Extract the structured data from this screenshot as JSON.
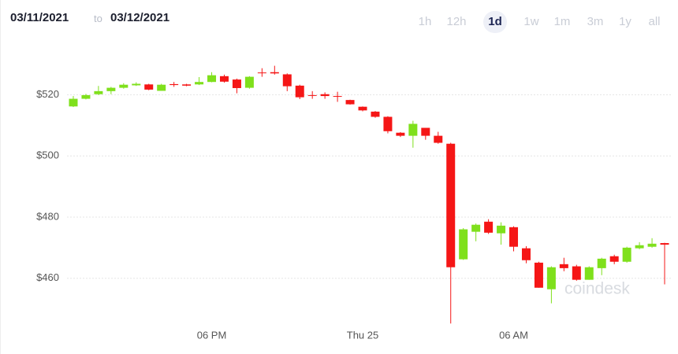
{
  "header": {
    "from": "03/11/2021",
    "to_label": "to",
    "to": "03/12/2021",
    "ranges": [
      {
        "label": "1h",
        "active": false
      },
      {
        "label": "12h",
        "active": false
      },
      {
        "label": "1d",
        "active": true
      },
      {
        "label": "1w",
        "active": false
      },
      {
        "label": "1m",
        "active": false
      },
      {
        "label": "3m",
        "active": false
      },
      {
        "label": "1y",
        "active": false
      },
      {
        "label": "all",
        "active": false
      }
    ]
  },
  "chart_data": {
    "type": "candlestick",
    "watermark": "coindesk",
    "categories": [
      null,
      null,
      null,
      null,
      null,
      null,
      null,
      null,
      null,
      null,
      null,
      "06 PM",
      null,
      null,
      null,
      null,
      null,
      null,
      null,
      null,
      null,
      null,
      null,
      "Thu 25",
      null,
      null,
      null,
      null,
      null,
      null,
      null,
      null,
      null,
      null,
      null,
      "06 AM",
      null,
      null,
      null,
      null,
      null,
      null,
      null,
      null,
      null,
      null,
      null,
      null
    ],
    "open": [
      516.2,
      518.7,
      520.2,
      521.2,
      522.3,
      523.1,
      523.4,
      521.3,
      523.5,
      523.4,
      523.4,
      524.2,
      526.1,
      525.0,
      522.3,
      527.3,
      527.4,
      526.7,
      523.0,
      519.9,
      520.2,
      519.6,
      518.3,
      516.1,
      514.5,
      512.8,
      507.6,
      506.6,
      509.2,
      506.6,
      504.0,
      466.2,
      475.2,
      478.5,
      474.7,
      476.7,
      469.8,
      465.1,
      456.4,
      464.6,
      463.9,
      459.5,
      463.3,
      467.2,
      465.4,
      469.8,
      470.3,
      471.5
    ],
    "high": [
      519.6,
      520.3,
      522.9,
      522.6,
      523.8,
      524.1,
      523.6,
      523.6,
      524.2,
      523.6,
      525.8,
      527.4,
      526.6,
      525.3,
      526.1,
      528.7,
      529.5,
      527.0,
      523.3,
      521.2,
      520.8,
      521.0,
      518.4,
      516.2,
      514.7,
      513.0,
      507.8,
      511.5,
      509.2,
      507.9,
      504.3,
      476.4,
      477.9,
      479.3,
      478.3,
      477.0,
      470.5,
      465.4,
      463.9,
      466.7,
      464.4,
      463.9,
      466.7,
      467.7,
      470.3,
      471.8,
      473.1,
      471.6
    ],
    "low": [
      516.0,
      518.5,
      519.9,
      520.2,
      522.0,
      522.9,
      521.5,
      521.3,
      522.6,
      522.8,
      523.2,
      524.1,
      524.0,
      520.5,
      522.0,
      525.9,
      526.6,
      521.2,
      518.6,
      518.7,
      518.7,
      517.7,
      516.8,
      514.6,
      512.5,
      507.4,
      506.2,
      502.7,
      505.3,
      504.0,
      445.2,
      466.0,
      472.1,
      474.5,
      471.0,
      468.8,
      464.9,
      456.9,
      451.8,
      462.3,
      459.2,
      459.5,
      461.0,
      464.6,
      465.1,
      469.5,
      470.0,
      458.0
    ],
    "close": [
      518.7,
      519.9,
      521.2,
      522.3,
      523.3,
      523.6,
      521.7,
      523.3,
      523.2,
      523.0,
      524.2,
      526.4,
      524.3,
      522.2,
      525.9,
      527.2,
      527.0,
      522.8,
      519.2,
      519.8,
      519.6,
      519.4,
      516.9,
      514.9,
      512.8,
      508.1,
      506.6,
      510.5,
      506.6,
      504.3,
      463.6,
      476.0,
      477.5,
      474.9,
      477.2,
      470.3,
      465.9,
      456.9,
      463.6,
      463.3,
      459.5,
      463.6,
      466.4,
      465.4,
      470.0,
      470.8,
      471.3,
      471.0
    ],
    "up_color": "#7fe01c",
    "down_color": "#f51616",
    "ylim": [
      445,
      533
    ],
    "yticks": [
      {
        "value": 460,
        "label": "$460"
      },
      {
        "value": 480,
        "label": "$480"
      },
      {
        "value": 500,
        "label": "$500"
      },
      {
        "value": 520,
        "label": "$520"
      }
    ],
    "grid": true
  }
}
